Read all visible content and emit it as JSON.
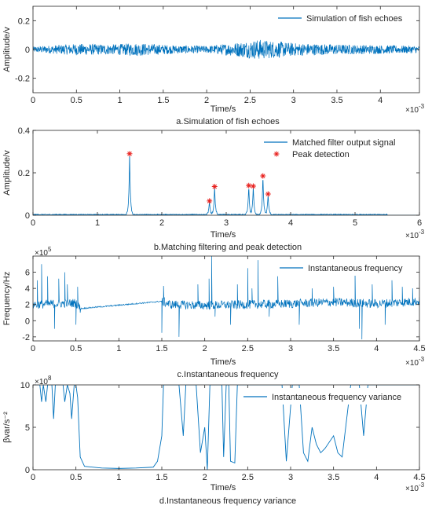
{
  "colors": {
    "signal": "#0072BD",
    "marker": "#E8221F",
    "axis": "#262626"
  },
  "chart_data": [
    {
      "type": "line",
      "caption": "a.Simulation of fish echoes",
      "xlabel": "Time/s",
      "ylabel": "Amplitude/v",
      "xlim": [
        0,
        0.00445
      ],
      "ylim": [
        -0.3,
        0.3
      ],
      "xticks": [
        0,
        0.0005,
        0.001,
        0.0015,
        0.002,
        0.0025,
        0.003,
        0.0035,
        0.004
      ],
      "xtick_labels": [
        "0",
        "0.5",
        "1",
        "1.5",
        "2",
        "2.5",
        "3",
        "3.5",
        "4"
      ],
      "yticks": [
        -0.2,
        0,
        0.2
      ],
      "ytick_labels": [
        "-0.2",
        "0",
        "0.2"
      ],
      "x_exponent": "-3",
      "legend": [
        "Simulation of fish echoes"
      ],
      "legend_position": "top-right",
      "series": [
        {
          "name": "Simulation of fish echoes",
          "kind": "noise",
          "envelope": [
            [
              0,
              0.02
            ],
            [
              0.0005,
              0.04
            ],
            [
              0.0009,
              0.035
            ],
            [
              0.0012,
              0.045
            ],
            [
              0.0016,
              0.03
            ],
            [
              0.002,
              0.025
            ],
            [
              0.0023,
              0.045
            ],
            [
              0.0026,
              0.07
            ],
            [
              0.003,
              0.045
            ],
            [
              0.0035,
              0.035
            ],
            [
              0.004,
              0.03
            ],
            [
              0.00445,
              0.025
            ]
          ]
        }
      ]
    },
    {
      "type": "line",
      "caption": "b.Matching filtering and peak detection",
      "xlabel": "Time/s",
      "ylabel": "Amplitude/v",
      "xlim": [
        0,
        0.006
      ],
      "ylim": [
        0,
        0.4
      ],
      "xticks": [
        0,
        0.001,
        0.002,
        0.003,
        0.004,
        0.005,
        0.006
      ],
      "xtick_labels": [
        "0",
        "1",
        "2",
        "3",
        "4",
        "5",
        "6"
      ],
      "yticks": [
        0,
        0.2,
        0.4
      ],
      "ytick_labels": [
        "0",
        "0.2",
        "0.4"
      ],
      "x_exponent": "-3",
      "legend": [
        "Matched filter output signal",
        "Peak detection"
      ],
      "legend_position": "top-right",
      "series": [
        {
          "name": "Matched filter output signal",
          "kind": "peaks",
          "baseline": 0.004,
          "end": 0.0055,
          "peaks": [
            [
              0.0015,
              0.29
            ],
            [
              0.00282,
              0.135
            ],
            [
              0.00274,
              0.067
            ],
            [
              0.00335,
              0.14
            ],
            [
              0.00342,
              0.137
            ],
            [
              0.00357,
              0.185
            ],
            [
              0.00365,
              0.1
            ]
          ]
        },
        {
          "name": "Peak detection",
          "kind": "markers",
          "points": [
            [
              0.0015,
              0.29
            ],
            [
              0.00274,
              0.067
            ],
            [
              0.00282,
              0.135
            ],
            [
              0.00335,
              0.14
            ],
            [
              0.00342,
              0.137
            ],
            [
              0.00357,
              0.185
            ],
            [
              0.00365,
              0.1
            ]
          ]
        }
      ]
    },
    {
      "type": "line",
      "caption": "c.Instantaneous frequency",
      "xlabel": "Time/s",
      "ylabel": "Frequency/Hz",
      "xlim": [
        0,
        0.0045
      ],
      "ylim": [
        -250000,
        800000
      ],
      "xticks": [
        0,
        0.0005,
        0.001,
        0.0015,
        0.002,
        0.0025,
        0.003,
        0.0035,
        0.004,
        0.0045
      ],
      "xtick_labels": [
        "0",
        "0.5",
        "1",
        "1.5",
        "2",
        "2.5",
        "3",
        "3.5",
        "4",
        "4.5"
      ],
      "yticks": [
        -200000,
        0,
        200000,
        400000,
        600000
      ],
      "ytick_labels": [
        "-2",
        "0",
        "2",
        "4",
        "6"
      ],
      "x_exponent": "-3",
      "y_exponent": "5",
      "legend": [
        "Instantaneous frequency"
      ],
      "legend_position": "top-right",
      "series": [
        {
          "name": "Instantaneous frequency",
          "kind": "freq",
          "trend": [
            [
              0,
              200000
            ],
            [
              0.0005,
              220000
            ],
            [
              0.00055,
              150000
            ],
            [
              0.0015,
              240000
            ],
            [
              0.0016,
              200000
            ],
            [
              0.002,
              190000
            ],
            [
              0.0025,
              200000
            ],
            [
              0.003,
              210000
            ],
            [
              0.0035,
              230000
            ],
            [
              0.004,
              210000
            ],
            [
              0.0045,
              240000
            ]
          ],
          "spikes": [
            [
              5e-05,
              500000
            ],
            [
              0.0001,
              700000
            ],
            [
              0.00017,
              550000
            ],
            [
              0.00025,
              -100000
            ],
            [
              0.0003,
              520000
            ],
            [
              0.00037,
              600000
            ],
            [
              0.0004,
              450000
            ],
            [
              0.0005,
              -50000
            ],
            [
              0.00052,
              420000
            ],
            [
              0.0015,
              -150000
            ],
            [
              0.00152,
              430000
            ],
            [
              0.0017,
              -200000
            ],
            [
              0.00192,
              450000
            ],
            [
              0.00205,
              520000
            ],
            [
              0.00208,
              800000
            ],
            [
              0.00212,
              50000
            ],
            [
              0.0023,
              -50000
            ],
            [
              0.00238,
              450000
            ],
            [
              0.0025,
              650000
            ],
            [
              0.00255,
              400000
            ],
            [
              0.00262,
              750000
            ],
            [
              0.00275,
              50000
            ],
            [
              0.00285,
              550000
            ],
            [
              0.0031,
              -50000
            ],
            [
              0.00325,
              400000
            ],
            [
              0.0035,
              420000
            ],
            [
              0.00375,
              620000
            ],
            [
              0.0038,
              -100000
            ],
            [
              0.00383,
              -230000
            ],
            [
              0.00395,
              450000
            ],
            [
              0.0041,
              -50000
            ],
            [
              0.00418,
              500000
            ],
            [
              0.0043,
              420000
            ],
            [
              0.00442,
              400000
            ]
          ]
        }
      ]
    },
    {
      "type": "line",
      "caption": "d.Instantaneous frequency variance",
      "xlabel": "Time/s",
      "ylabel": "βvar/s⁻²",
      "xlim": [
        0,
        0.0045
      ],
      "ylim": [
        0,
        1000000000
      ],
      "xticks": [
        0,
        0.0005,
        0.001,
        0.0015,
        0.002,
        0.0025,
        0.003,
        0.0035,
        0.004,
        0.0045
      ],
      "xtick_labels": [
        "0",
        "0.5",
        "1",
        "1.5",
        "2",
        "2.5",
        "3",
        "3.5",
        "4",
        "4.5"
      ],
      "yticks": [
        0,
        500000000,
        1000000000
      ],
      "ytick_labels": [
        "0",
        "5",
        "10"
      ],
      "x_exponent": "-3",
      "y_exponent": "8",
      "legend": [
        "Instantaneous frequency variance"
      ],
      "legend_position": "top-right",
      "series": [
        {
          "name": "Instantaneous frequency variance",
          "kind": "polyline",
          "points": [
            [
              0,
              1000000000
            ],
            [
              8e-05,
              1000000000
            ],
            [
              0.0001,
              800000000
            ],
            [
              0.00012,
              1000000000
            ],
            [
              0.00015,
              800000000
            ],
            [
              0.00017,
              1000000000
            ],
            [
              0.00022,
              1000000000
            ],
            [
              0.00024,
              600000000
            ],
            [
              0.00026,
              1000000000
            ],
            [
              0.0003,
              1000000000
            ],
            [
              0.00035,
              1000000000
            ],
            [
              0.00037,
              800000000
            ],
            [
              0.0004,
              1000000000
            ],
            [
              0.00043,
              900000000
            ],
            [
              0.00045,
              600000000
            ],
            [
              0.00048,
              1000000000
            ],
            [
              0.0005,
              1000000000
            ],
            [
              0.00052,
              850000000
            ],
            [
              0.00055,
              150000000
            ],
            [
              0.0006,
              40000000
            ],
            [
              0.0008,
              20000000
            ],
            [
              0.001,
              15000000
            ],
            [
              0.0012,
              20000000
            ],
            [
              0.0014,
              30000000
            ],
            [
              0.00145,
              100000000
            ],
            [
              0.0015,
              400000000
            ],
            [
              0.00152,
              1000000000
            ],
            [
              0.0017,
              1000000000
            ],
            [
              0.00175,
              400000000
            ],
            [
              0.00178,
              1000000000
            ],
            [
              0.0019,
              1000000000
            ],
            [
              0.00195,
              200000000
            ],
            [
              0.002,
              500000000
            ],
            [
              0.00203,
              0
            ],
            [
              0.00206,
              1000000000
            ],
            [
              0.0022,
              1000000000
            ],
            [
              0.00222,
              150000000
            ],
            [
              0.00225,
              1000000000
            ],
            [
              0.00228,
              1000000000
            ],
            [
              0.0023,
              100000000
            ],
            [
              0.00235,
              80000000
            ],
            [
              0.00238,
              1000000000
            ],
            [
              0.0029,
              1000000000
            ],
            [
              0.00295,
              100000000
            ],
            [
              0.00302,
              1000000000
            ],
            [
              0.0031,
              1000000000
            ],
            [
              0.00315,
              200000000
            ],
            [
              0.0032,
              100000000
            ],
            [
              0.00325,
              500000000
            ],
            [
              0.0033,
              300000000
            ],
            [
              0.00335,
              200000000
            ],
            [
              0.0034,
              250000000
            ],
            [
              0.0035,
              400000000
            ],
            [
              0.00355,
              200000000
            ],
            [
              0.0036,
              150000000
            ],
            [
              0.0037,
              1000000000
            ],
            [
              0.0038,
              1000000000
            ],
            [
              0.00385,
              400000000
            ],
            [
              0.0039,
              1000000000
            ],
            [
              0.004,
              1000000000
            ],
            [
              0.0045,
              1000000000
            ]
          ]
        }
      ]
    }
  ]
}
